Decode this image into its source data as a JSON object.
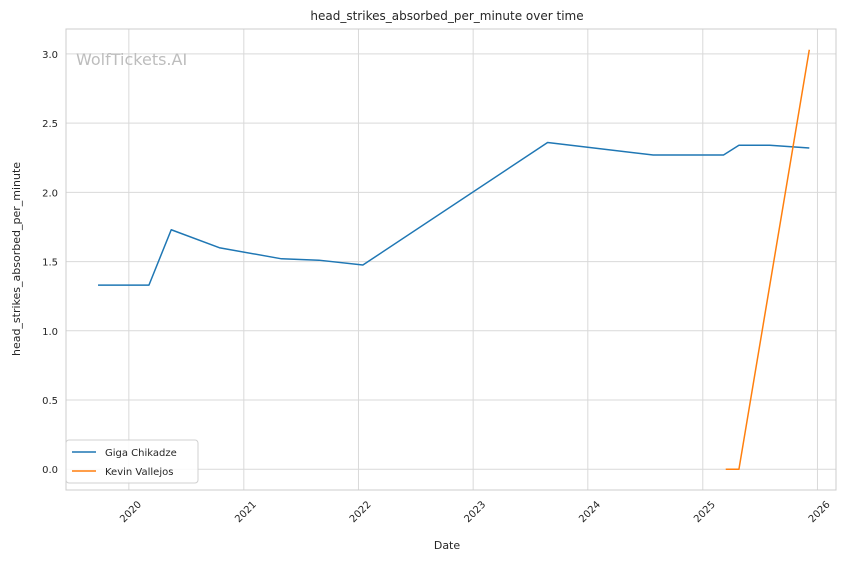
{
  "chart_data": {
    "type": "line",
    "title": "head_strikes_absorbed_per_minute over time",
    "xlabel": "Date",
    "ylabel": "head_strikes_absorbed_per_minute",
    "watermark": "WolfTickets.AI",
    "x_ticks": [
      "2020",
      "2021",
      "2022",
      "2023",
      "2024",
      "2025",
      "2026"
    ],
    "y_ticks": [
      "0.0",
      "0.5",
      "1.0",
      "1.5",
      "2.0",
      "2.5",
      "3.0"
    ],
    "xlim": [
      "2019-06-15",
      "2026-03-01"
    ],
    "ylim": [
      -0.15,
      3.18
    ],
    "grid": true,
    "legend_position": "lower-left",
    "series": [
      {
        "name": "Giga Chikadze",
        "color": "#1f77b4",
        "points": [
          {
            "x": "2019-09-25",
            "y": 1.33
          },
          {
            "x": "2020-03-05",
            "y": 1.33
          },
          {
            "x": "2020-05-15",
            "y": 1.73
          },
          {
            "x": "2020-10-15",
            "y": 1.6
          },
          {
            "x": "2021-05-01",
            "y": 1.52
          },
          {
            "x": "2021-08-28",
            "y": 1.51
          },
          {
            "x": "2022-01-15",
            "y": 1.475
          },
          {
            "x": "2023-08-26",
            "y": 2.36
          },
          {
            "x": "2024-07-27",
            "y": 2.27
          },
          {
            "x": "2025-03-08",
            "y": 2.27
          },
          {
            "x": "2025-04-26",
            "y": 2.34
          },
          {
            "x": "2025-08-02",
            "y": 2.34
          },
          {
            "x": "2025-12-06",
            "y": 2.32
          }
        ]
      },
      {
        "name": "Kevin Vallejos",
        "color": "#ff7f0e",
        "points": [
          {
            "x": "2025-03-15",
            "y": 0.0
          },
          {
            "x": "2025-04-26",
            "y": 0.0
          },
          {
            "x": "2025-12-06",
            "y": 3.03
          }
        ]
      }
    ]
  }
}
